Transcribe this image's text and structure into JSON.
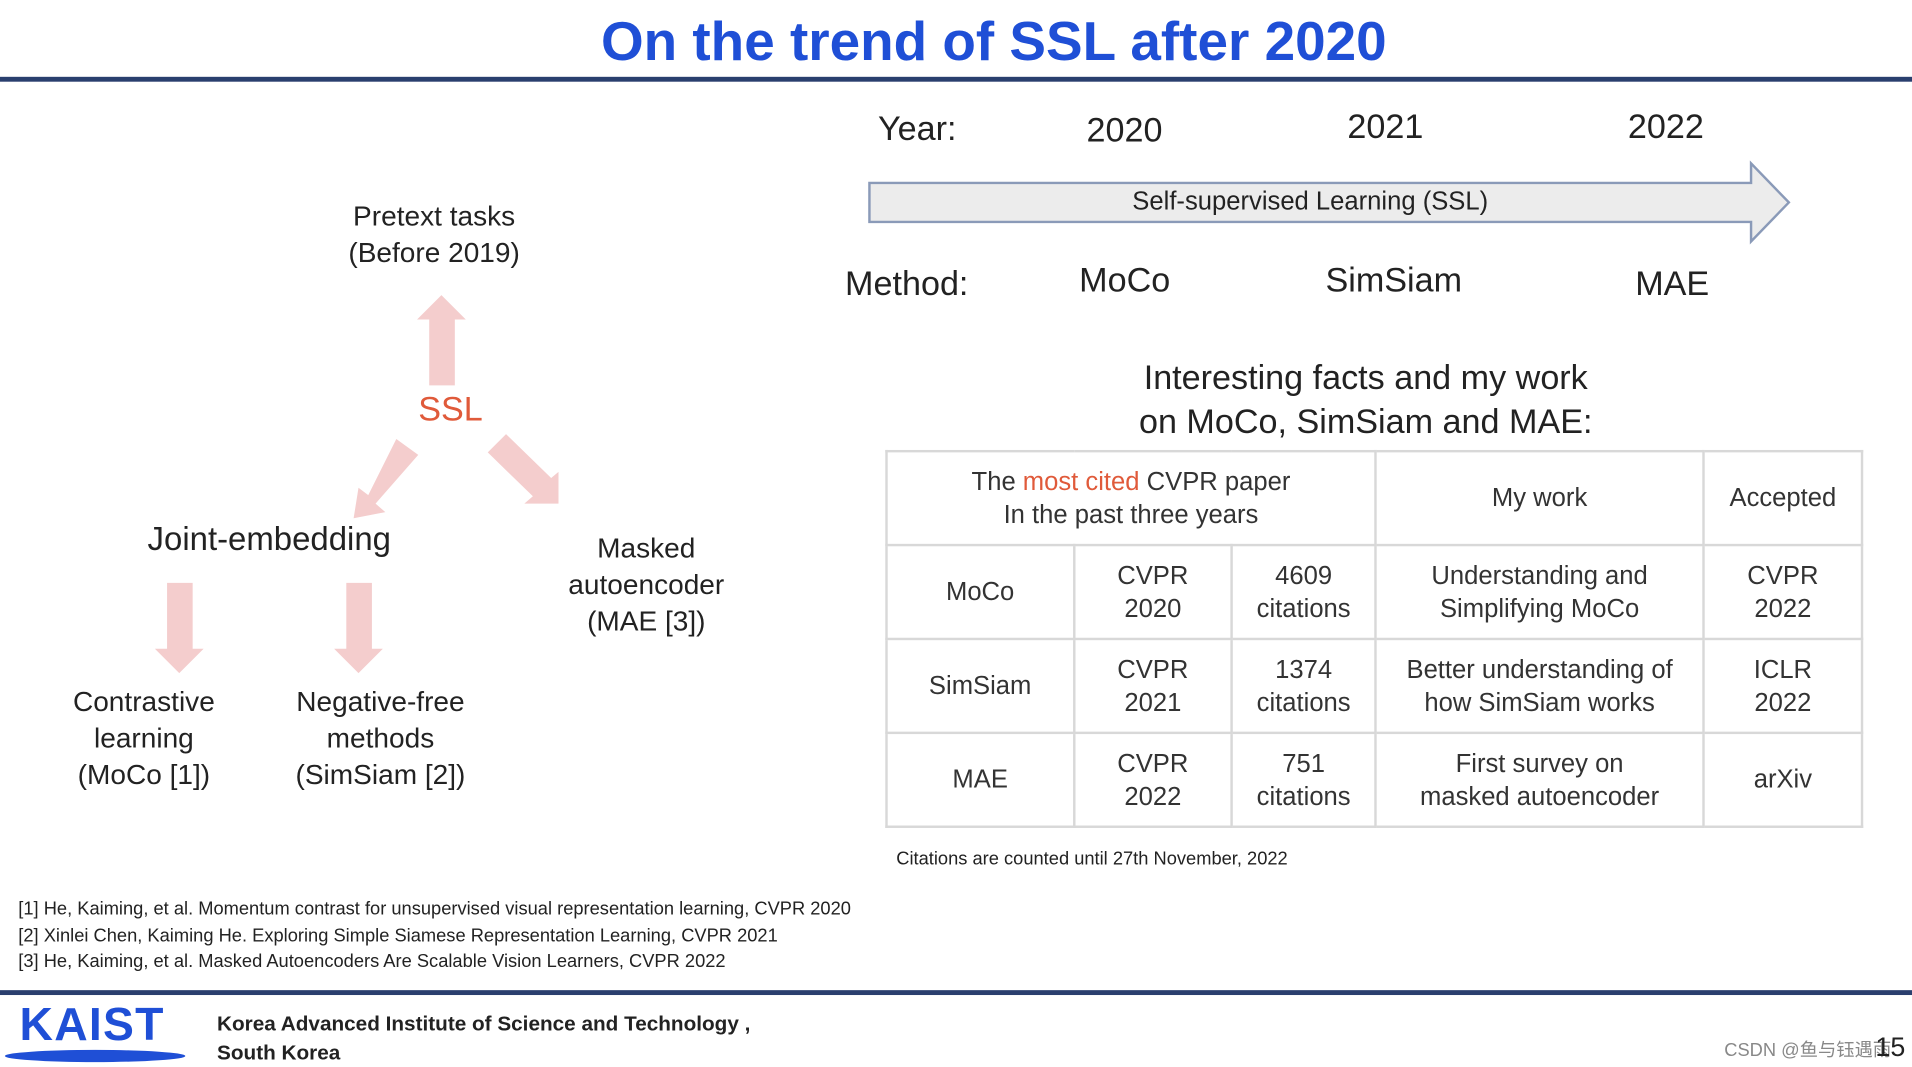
{
  "title": "On the trend of SSL after 2020",
  "timeline": {
    "year_label": "Year:",
    "years": [
      "2020",
      "2021",
      "2022"
    ],
    "arrow_label": "Self-supervised Learning (SSL)",
    "method_label": "Method:",
    "methods": [
      "MoCo",
      "SimSiam",
      "MAE"
    ]
  },
  "taxonomy": {
    "top": [
      "Pretext tasks",
      "(Before 2019)"
    ],
    "center": "SSL",
    "joint": "Joint-embedding",
    "masked": [
      "Masked",
      "autoencoder",
      "(MAE [3])"
    ],
    "contrastive": [
      "Contrastive",
      "learning",
      "(MoCo [1])"
    ],
    "negative_free": [
      "Negative-free",
      "methods",
      "(SimSiam [2])"
    ]
  },
  "facts_heading": [
    "Interesting facts and my work",
    "on MoCo, SimSiam and MAE:"
  ],
  "table": {
    "header": {
      "cited": [
        "The ",
        "most cited",
        " CVPR paper"
      ],
      "cited_line2": "In the past three years",
      "my_work": "My work",
      "accepted": "Accepted"
    },
    "rows": [
      [
        [
          "MoCo"
        ],
        [
          "CVPR",
          "2020"
        ],
        [
          "4609",
          "citations"
        ],
        [
          "Understanding and",
          "Simplifying MoCo"
        ],
        [
          "CVPR",
          "2022"
        ]
      ],
      [
        [
          "SimSiam"
        ],
        [
          "CVPR",
          "2021"
        ],
        [
          "1374",
          "citations"
        ],
        [
          "Better understanding of",
          "how SimSiam works"
        ],
        [
          "ICLR",
          "2022"
        ]
      ],
      [
        [
          "MAE"
        ],
        [
          "CVPR",
          "2022"
        ],
        [
          "751",
          "citations"
        ],
        [
          "First survey on",
          "masked autoencoder"
        ],
        [
          "arXiv"
        ]
      ]
    ]
  },
  "note": "Citations are counted until 27th November, 2022",
  "references": [
    "[1] He, Kaiming, et al. Momentum contrast for unsupervised visual representation learning, CVPR 2020",
    "[2] Xinlei Chen, Kaiming He. Exploring Simple Siamese Representation Learning, CVPR 2021",
    "[3] He, Kaiming, et al. Masked Autoencoders Are Scalable Vision Learners, CVPR 2022"
  ],
  "footer": {
    "logo": "KAIST",
    "institution": [
      "Korea Advanced Institute of Science and Technology ,",
      "South Korea"
    ],
    "watermark": "CSDN @鱼与钰遇雨",
    "page": "15"
  }
}
